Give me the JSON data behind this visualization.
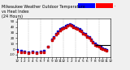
{
  "title": "Milwaukee Weather Outdoor Temperature\nvs Heat Index\n(24 Hours)",
  "title_fontsize": 3.8,
  "background_color": "#f0f0f0",
  "plot_bg_color": "#ffffff",
  "grid_color": "#aaaaaa",
  "xlim": [
    0,
    24
  ],
  "ylim": [
    -15,
    55
  ],
  "yticks": [
    -10,
    0,
    10,
    20,
    30,
    40,
    50
  ],
  "ytick_labels": [
    "-10",
    "0",
    "10",
    "20",
    "30",
    "40",
    "50"
  ],
  "ytick_fontsize": 3.0,
  "xtick_fontsize": 3.0,
  "xticks": [
    0,
    1,
    2,
    3,
    4,
    5,
    6,
    7,
    8,
    9,
    10,
    11,
    12,
    13,
    14,
    15,
    16,
    17,
    18,
    19,
    20,
    21,
    22,
    23,
    24
  ],
  "xtick_labels": [
    "12",
    "1",
    "2",
    "3",
    "4",
    "5",
    "6",
    "7",
    "8",
    "9",
    "10",
    "11",
    "12",
    "1",
    "2",
    "3",
    "4",
    "5",
    "6",
    "7",
    "8",
    "9",
    "10",
    "11",
    "12"
  ],
  "temp_color": "#0000cc",
  "heat_color": "#cc0000",
  "legend_temp_color": "#0000ff",
  "legend_heat_color": "#ff0000",
  "temp_x": [
    0,
    1,
    2,
    3,
    4,
    5,
    6,
    7,
    8,
    9,
    9.5,
    10,
    10.5,
    11,
    11.5,
    12,
    12.5,
    13,
    13.5,
    14,
    14.5,
    15,
    15.5,
    16,
    16.5,
    17,
    17.5,
    18,
    18.5,
    19,
    19.5,
    20,
    20.5,
    21,
    21.5,
    22,
    22.5,
    23
  ],
  "temp_y": [
    -2,
    -3,
    -4,
    -5,
    -4,
    -5,
    -4,
    -3,
    5,
    18,
    22,
    28,
    32,
    36,
    38,
    40,
    42,
    44,
    46,
    44,
    42,
    40,
    38,
    36,
    34,
    30,
    28,
    24,
    22,
    18,
    14,
    10,
    8,
    6,
    4,
    2,
    0,
    -1
  ],
  "heat_x": [
    0,
    1,
    2,
    3,
    4,
    5,
    6,
    7,
    8,
    9,
    9.5,
    10,
    10.5,
    11,
    11.5,
    12,
    12.5,
    13,
    13.5,
    14,
    14.5,
    15,
    15.5,
    16,
    16.5,
    17,
    17.5,
    18,
    18.5,
    19,
    19.5,
    20,
    20.5,
    21,
    21.5,
    22,
    22.5,
    23
  ],
  "heat_y": [
    -4,
    -5,
    -6,
    -7,
    -6,
    -7,
    -6,
    -5,
    4,
    16,
    20,
    26,
    30,
    34,
    36,
    38,
    40,
    42,
    44,
    42,
    40,
    38,
    36,
    34,
    32,
    28,
    26,
    22,
    20,
    16,
    12,
    8,
    6,
    4,
    2,
    0,
    -2,
    -3
  ],
  "ref_line_y": 8,
  "ref_line_x_start": 20,
  "ref_line_x_end": 24,
  "ref_line_color": "#000000",
  "marker_size": 1.2,
  "vgrid_positions": [
    0,
    3,
    6,
    9,
    12,
    15,
    18,
    21,
    24
  ]
}
